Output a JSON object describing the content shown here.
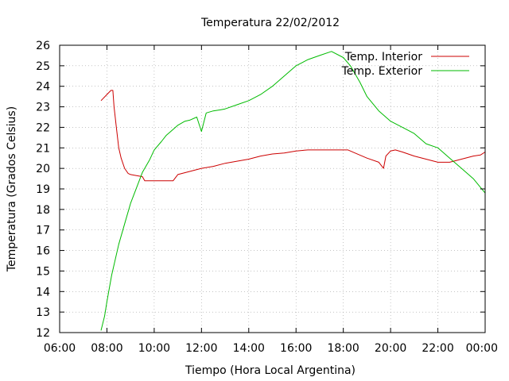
{
  "chart_data": {
    "type": "line",
    "title": "Temperatura 22/02/2012",
    "xlabel": "Tiempo (Hora Local Argentina)",
    "ylabel": "Temperatura (Grados Celsius)",
    "xlim": [
      6,
      24
    ],
    "ylim": [
      12,
      26
    ],
    "x_ticks": [
      6,
      8,
      10,
      12,
      14,
      16,
      18,
      20,
      22,
      24
    ],
    "x_tick_labels": [
      "06:00",
      "08:00",
      "10:00",
      "12:00",
      "14:00",
      "16:00",
      "18:00",
      "20:00",
      "22:00",
      "00:00"
    ],
    "y_ticks": [
      12,
      13,
      14,
      15,
      16,
      17,
      18,
      19,
      20,
      21,
      22,
      23,
      24,
      25,
      26
    ],
    "y_tick_labels": [
      "12",
      "13",
      "14",
      "15",
      "16",
      "17",
      "18",
      "19",
      "20",
      "21",
      "22",
      "23",
      "24",
      "25",
      "26"
    ],
    "grid": true,
    "legend_position": "top-right",
    "series": [
      {
        "name": "Temp. Interior",
        "color": "#cc0000",
        "x": [
          7.75,
          8.0,
          8.17,
          8.25,
          8.3,
          8.4,
          8.5,
          8.6,
          8.75,
          8.9,
          9.0,
          9.25,
          9.5,
          9.6,
          10.0,
          10.5,
          10.8,
          11.0,
          11.5,
          12.0,
          12.5,
          13.0,
          13.5,
          14.0,
          14.5,
          15.0,
          15.5,
          16.0,
          16.5,
          17.0,
          17.5,
          18.0,
          18.2,
          18.5,
          19.0,
          19.5,
          19.7,
          19.8,
          20.0,
          20.2,
          20.5,
          21.0,
          21.5,
          22.0,
          22.5,
          23.0,
          23.5,
          23.8,
          24.0
        ],
        "values": [
          23.3,
          23.6,
          23.8,
          23.8,
          23.0,
          22.0,
          21.0,
          20.5,
          20.0,
          19.75,
          19.7,
          19.65,
          19.6,
          19.4,
          19.4,
          19.4,
          19.4,
          19.7,
          19.85,
          20.0,
          20.1,
          20.25,
          20.35,
          20.45,
          20.6,
          20.7,
          20.75,
          20.85,
          20.9,
          20.9,
          20.9,
          20.9,
          20.9,
          20.75,
          20.5,
          20.3,
          20.0,
          20.6,
          20.85,
          20.9,
          20.8,
          20.6,
          20.45,
          20.3,
          20.3,
          20.45,
          20.6,
          20.65,
          20.8
        ]
      },
      {
        "name": "Temp. Exterior",
        "color": "#00bb00",
        "x": [
          7.75,
          7.9,
          8.0,
          8.2,
          8.5,
          8.8,
          9.0,
          9.3,
          9.5,
          9.8,
          10.0,
          10.3,
          10.5,
          10.8,
          11.0,
          11.3,
          11.5,
          11.8,
          12.0,
          12.2,
          12.5,
          12.8,
          13.0,
          13.5,
          14.0,
          14.5,
          15.0,
          15.5,
          16.0,
          16.5,
          17.0,
          17.5,
          18.0,
          18.3,
          18.7,
          19.0,
          19.5,
          20.0,
          20.5,
          21.0,
          21.5,
          22.0,
          22.5,
          23.0,
          23.5,
          24.0
        ],
        "values": [
          12.1,
          12.8,
          13.5,
          14.8,
          16.3,
          17.5,
          18.3,
          19.2,
          19.8,
          20.4,
          20.9,
          21.3,
          21.6,
          21.9,
          22.1,
          22.3,
          22.35,
          22.5,
          21.8,
          22.7,
          22.8,
          22.85,
          22.9,
          23.1,
          23.3,
          23.6,
          24.0,
          24.5,
          25.0,
          25.3,
          25.5,
          25.7,
          25.4,
          25.0,
          24.2,
          23.5,
          22.8,
          22.3,
          22.0,
          21.7,
          21.2,
          21.0,
          20.5,
          20.0,
          19.5,
          18.8
        ]
      }
    ]
  }
}
